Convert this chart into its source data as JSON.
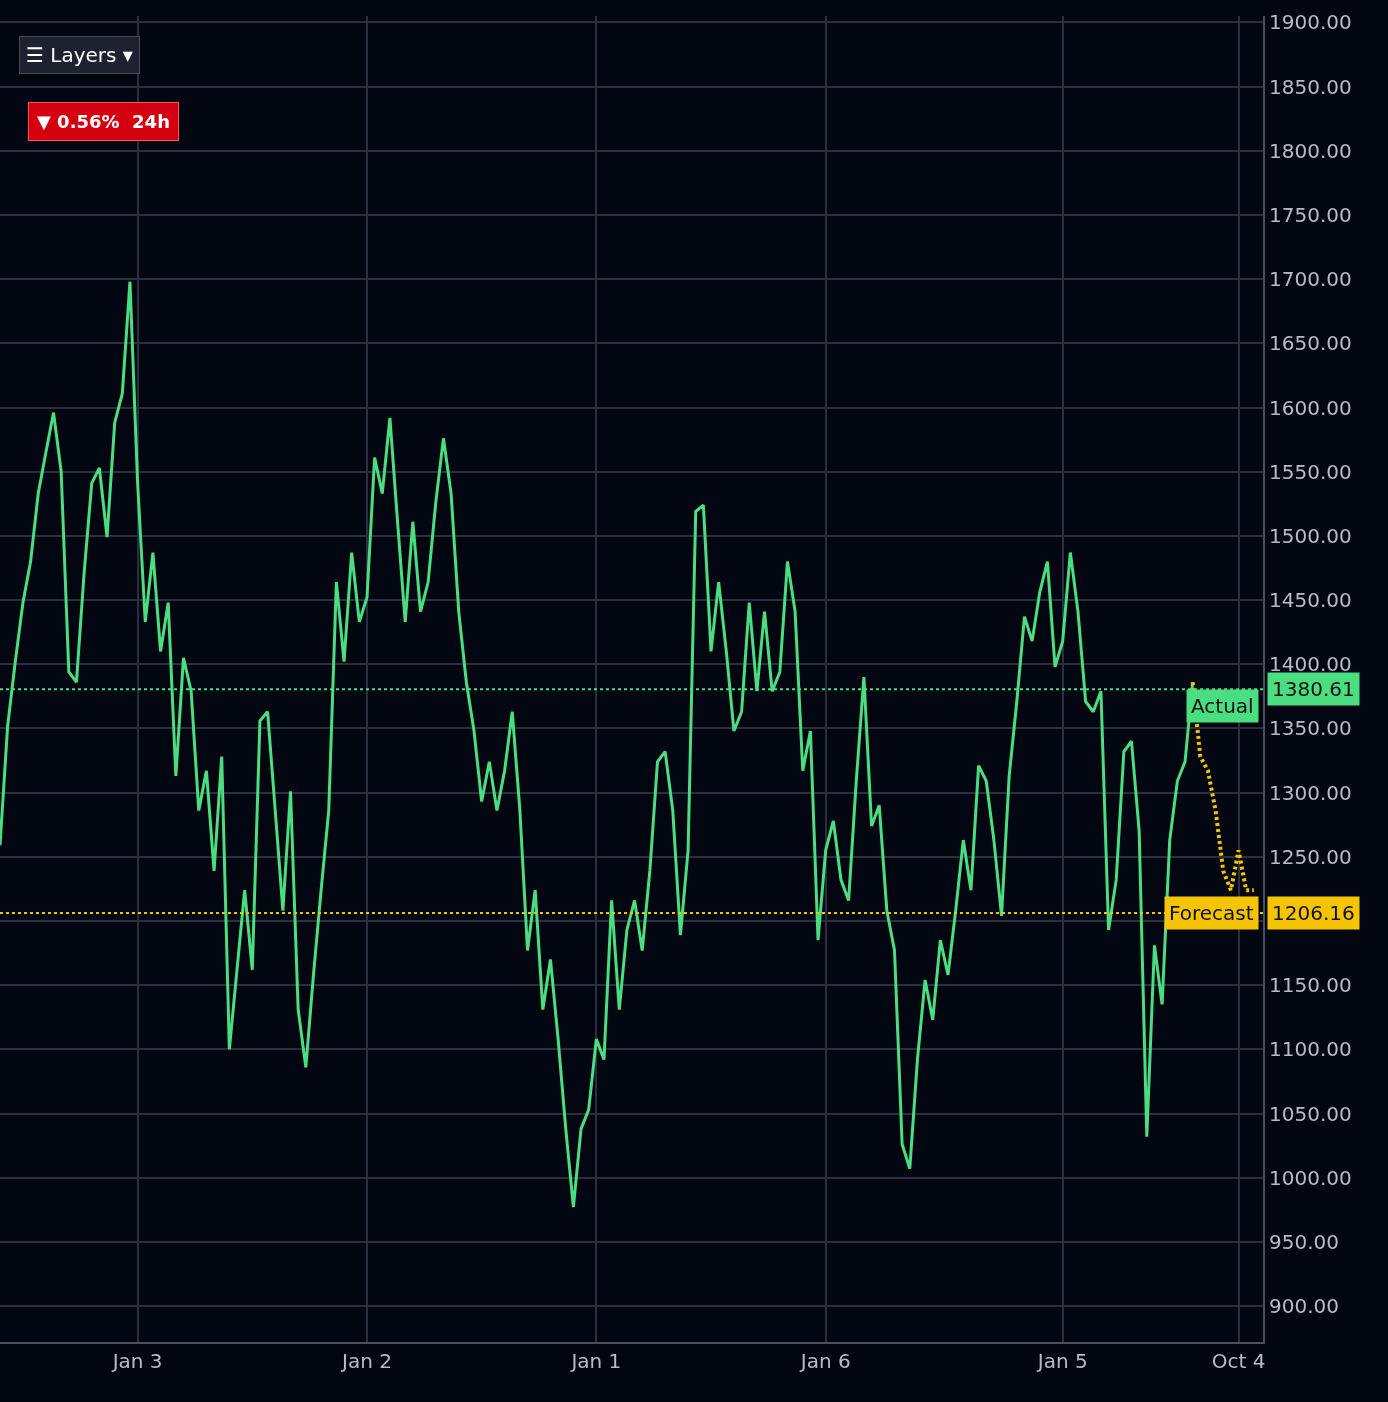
{
  "chart_data": {
    "type": "line",
    "categories": [
      null,
      null,
      null,
      null,
      null,
      null,
      null,
      null,
      null,
      null,
      null,
      null,
      null,
      null,
      null,
      null,
      null,
      null,
      "Jan 3",
      null,
      null,
      null,
      null,
      null,
      null,
      null,
      null,
      null,
      null,
      null,
      null,
      null,
      null,
      null,
      null,
      null,
      null,
      null,
      null,
      null,
      null,
      null,
      null,
      null,
      null,
      null,
      null,
      null,
      "Jan 2",
      null,
      null,
      null,
      null,
      null,
      null,
      null,
      null,
      null,
      null,
      null,
      null,
      null,
      null,
      null,
      null,
      null,
      null,
      null,
      null,
      null,
      null,
      null,
      null,
      null,
      null,
      null,
      null,
      null,
      "Jan 1",
      null,
      null,
      null,
      null,
      null,
      null,
      null,
      null,
      null,
      null,
      null,
      null,
      null,
      null,
      null,
      null,
      null,
      null,
      null,
      null,
      null,
      null,
      null,
      null,
      null,
      null,
      null,
      null,
      null,
      "Jan 6",
      null,
      null,
      null,
      null,
      null,
      null,
      null,
      null,
      null,
      null,
      null,
      null,
      null,
      null,
      null,
      null,
      null,
      null,
      null,
      null,
      null,
      null,
      null,
      null,
      null,
      null,
      null,
      null,
      null,
      null,
      "Jan 5",
      null,
      null,
      null,
      null,
      null,
      null,
      null,
      null,
      null,
      null,
      null,
      null,
      null,
      null,
      null,
      null,
      null,
      null,
      null,
      null,
      null,
      null,
      "Oct 4",
      null,
      null
    ],
    "series": [
      {
        "color": "#4ade80",
        "line_style": "solid",
        "values": [
          1259,
          1352,
          1402,
          1448,
          1480,
          1533,
          1565,
          1596,
          1550,
          1394,
          1386,
          1471,
          1541,
          1553,
          1499,
          1588,
          1611,
          1698,
          1541,
          1433,
          1487,
          1410,
          1448,
          1313,
          1405,
          1379,
          1286,
          1317,
          1239,
          1328,
          1100,
          1162,
          1224,
          1162,
          1356,
          1363,
          1286,
          1208,
          1301,
          1131,
          1086,
          1158,
          1224,
          1286,
          1464,
          1402,
          1487,
          1433,
          1452,
          1561,
          1533,
          1592,
          1511,
          1433,
          1511,
          1441,
          1464,
          1526,
          1576,
          1533,
          1441,
          1386,
          1348,
          1293,
          1324,
          1286,
          1317,
          1363,
          1286,
          1177,
          1224,
          1131,
          1170,
          1108,
          1038,
          977,
          1038,
          1053,
          1108,
          1092,
          1216,
          1131,
          1193,
          1216,
          1177,
          1239,
          1324,
          1332,
          1286,
          1189,
          1255,
          1519,
          1524,
          1410,
          1464,
          1410,
          1348,
          1363,
          1448,
          1379,
          1441,
          1379,
          1394,
          1480,
          1441,
          1317,
          1348,
          1185,
          1255,
          1278,
          1232,
          1216,
          1309,
          1390,
          1274,
          1290,
          1208,
          1177,
          1026,
          1007,
          1092,
          1154,
          1123,
          1185,
          1158,
          1208,
          1263,
          1224,
          1321,
          1309,
          1263,
          1204,
          1313,
          1371,
          1437,
          1418,
          1456,
          1480,
          1398,
          1418,
          1487,
          1441,
          1371,
          1363,
          1379,
          1193,
          1232,
          1332,
          1340,
          1270,
          1032,
          1181,
          1135,
          1263,
          1309,
          1324,
          1386,
          null,
          null,
          null,
          null,
          null,
          null,
          null,
          null
        ]
      },
      {
        "color": "#f5c400",
        "line_style": "dotted",
        "values": [
          null,
          null,
          null,
          null,
          null,
          null,
          null,
          null,
          null,
          null,
          null,
          null,
          null,
          null,
          null,
          null,
          null,
          null,
          null,
          null,
          null,
          null,
          null,
          null,
          null,
          null,
          null,
          null,
          null,
          null,
          null,
          null,
          null,
          null,
          null,
          null,
          null,
          null,
          null,
          null,
          null,
          null,
          null,
          null,
          null,
          null,
          null,
          null,
          null,
          null,
          null,
          null,
          null,
          null,
          null,
          null,
          null,
          null,
          null,
          null,
          null,
          null,
          null,
          null,
          null,
          null,
          null,
          null,
          null,
          null,
          null,
          null,
          null,
          null,
          null,
          null,
          null,
          null,
          null,
          null,
          null,
          null,
          null,
          null,
          null,
          null,
          null,
          null,
          null,
          null,
          null,
          null,
          null,
          null,
          null,
          null,
          null,
          null,
          null,
          null,
          null,
          null,
          null,
          null,
          null,
          null,
          null,
          null,
          null,
          null,
          null,
          null,
          null,
          null,
          null,
          null,
          null,
          null,
          null,
          null,
          null,
          null,
          null,
          null,
          null,
          null,
          null,
          null,
          null,
          null,
          null,
          null,
          null,
          null,
          null,
          null,
          null,
          null,
          null,
          null,
          null,
          null,
          null,
          null,
          null,
          null,
          null,
          null,
          null,
          null,
          null,
          null,
          null,
          null,
          null,
          null,
          1386,
          1328,
          1317,
          1286,
          1239,
          1224,
          1255,
          1224,
          1224
        ]
      }
    ],
    "ylim": [
      872,
      1905
    ],
    "yticks": [
      {
        "value": 900,
        "label": "900.00"
      },
      {
        "value": 950,
        "label": "950.00"
      },
      {
        "value": 1000,
        "label": "1000.00"
      },
      {
        "value": 1050,
        "label": "1050.00"
      },
      {
        "value": 1100,
        "label": "1100.00"
      },
      {
        "value": 1150,
        "label": "1150.00"
      },
      {
        "value": 1200,
        "label": null
      },
      {
        "value": 1250,
        "label": "1250.00"
      },
      {
        "value": 1300,
        "label": "1300.00"
      },
      {
        "value": 1350,
        "label": "1350.00"
      },
      {
        "value": 1400,
        "label": "1400.00"
      },
      {
        "value": 1450,
        "label": "1450.00"
      },
      {
        "value": 1500,
        "label": "1500.00"
      },
      {
        "value": 1550,
        "label": "1550.00"
      },
      {
        "value": 1600,
        "label": "1600.00"
      },
      {
        "value": 1650,
        "label": "1650.00"
      },
      {
        "value": 1700,
        "label": "1700.00"
      },
      {
        "value": 1750,
        "label": "1750.00"
      },
      {
        "value": 1800,
        "label": "1800.00"
      },
      {
        "value": 1850,
        "label": "1850.00"
      },
      {
        "value": 1900,
        "label": "1900.00"
      }
    ],
    "ref_lines": [
      {
        "axis": "y",
        "value": 1380.61,
        "label": "Actual",
        "color": "#4ade80",
        "line_style": "dotted"
      },
      {
        "axis": "y",
        "value": 1206.16,
        "label": "Forecast",
        "color": "#f5c400",
        "line_style": "dotted"
      }
    ],
    "annotations": [
      "☰ Layers ▾",
      "▼ 0.56%  24h",
      "1380.61",
      "1206.16"
    ],
    "grid": true
  }
}
